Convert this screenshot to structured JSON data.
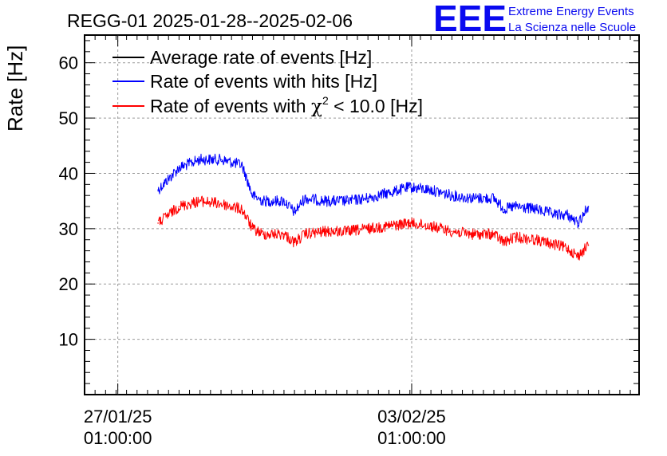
{
  "title": "REGG-01 2025-01-28--2025-02-06",
  "logo": {
    "mark": "EEE",
    "line1": "Extreme Energy Events",
    "line2": "La Scienza nelle Scuole",
    "color": "#0a0af0"
  },
  "chart_data": {
    "type": "line",
    "title": "REGG-01 2025-01-28--2025-02-06",
    "xlabel": "",
    "ylabel": "Rate [Hz]",
    "ylim": [
      0,
      65
    ],
    "yticks": [
      10,
      20,
      30,
      40,
      50,
      60
    ],
    "xlim": [
      "2025-01-26 06:00",
      "2025-02-08 11:00"
    ],
    "xticks": [
      {
        "date": "2025-01-27 01:00",
        "line1": "27/01/25",
        "line2": "01:00:00"
      },
      {
        "date": "2025-02-03 01:00",
        "line1": "03/02/25",
        "line2": "01:00:00"
      }
    ],
    "grid": true,
    "legend_position": "top-left",
    "series": [
      {
        "name": "Average rate of events [Hz]",
        "color": "#000000",
        "x": [],
        "values": []
      },
      {
        "name": "Rate of events with hits [Hz]",
        "color": "#0000ff",
        "x": [
          "2025-01-28 00:00",
          "2025-01-28 12:00",
          "2025-01-29 00:00",
          "2025-01-29 12:00",
          "2025-01-30 00:00",
          "2025-01-30 06:00",
          "2025-01-30 12:00",
          "2025-01-31 00:00",
          "2025-01-31 06:00",
          "2025-01-31 12:00",
          "2025-02-01 00:00",
          "2025-02-01 12:00",
          "2025-02-02 00:00",
          "2025-02-02 12:00",
          "2025-02-03 00:00",
          "2025-02-03 12:00",
          "2025-02-04 00:00",
          "2025-02-04 12:00",
          "2025-02-05 00:00",
          "2025-02-05 06:00",
          "2025-02-05 12:00",
          "2025-02-06 00:00",
          "2025-02-06 12:00",
          "2025-02-06 18:00",
          "2025-02-07 00:00",
          "2025-02-07 06:00"
        ],
        "values": [
          37,
          41,
          42.5,
          42.5,
          41.5,
          36,
          35,
          35,
          33,
          35.5,
          35,
          35,
          35.5,
          36.5,
          37.5,
          37,
          36,
          35.5,
          35.5,
          33.5,
          34,
          33.5,
          32.5,
          32.5,
          31,
          34
        ]
      },
      {
        "name": "Rate of events with χ² < 10.0 [Hz]",
        "label_prefix": "Rate of events with ",
        "label_symbol": "χ",
        "label_sup": "2",
        "label_suffix": " < 10.0 [Hz]",
        "color": "#ff0000",
        "x": [
          "2025-01-28 00:00",
          "2025-01-28 12:00",
          "2025-01-29 00:00",
          "2025-01-29 12:00",
          "2025-01-30 00:00",
          "2025-01-30 06:00",
          "2025-01-30 12:00",
          "2025-01-31 00:00",
          "2025-01-31 06:00",
          "2025-01-31 12:00",
          "2025-02-01 00:00",
          "2025-02-01 12:00",
          "2025-02-02 00:00",
          "2025-02-02 12:00",
          "2025-02-03 00:00",
          "2025-02-03 12:00",
          "2025-02-04 00:00",
          "2025-02-04 12:00",
          "2025-02-05 00:00",
          "2025-02-05 06:00",
          "2025-02-05 12:00",
          "2025-02-06 00:00",
          "2025-02-06 12:00",
          "2025-02-06 18:00",
          "2025-02-07 00:00",
          "2025-02-07 06:00"
        ],
        "values": [
          31,
          34,
          35,
          34.5,
          33.5,
          30,
          29,
          29,
          27.5,
          29,
          29.5,
          29.5,
          30,
          30.5,
          31,
          30.5,
          29.5,
          29,
          29,
          27.5,
          28.5,
          28,
          27,
          26.5,
          25,
          27
        ]
      }
    ]
  }
}
